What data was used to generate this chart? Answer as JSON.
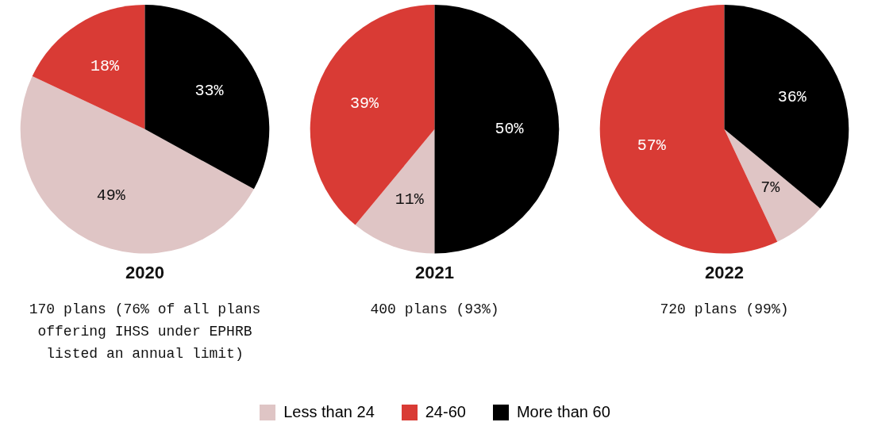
{
  "chart_data": [
    {
      "type": "pie",
      "title": "2020",
      "categories": [
        "Less than 24",
        "24-60",
        "More than 60"
      ],
      "values": [
        49,
        18,
        33
      ],
      "colors": [
        "#dfc5c5",
        "#d93b35",
        "#000000"
      ],
      "value_labels": [
        "49%",
        "18%",
        "33%"
      ],
      "legend": "bottom",
      "annotations": [
        "170 plans (76% of all plans offering IHSS under EPHRB listed an annual limit)"
      ]
    },
    {
      "type": "pie",
      "title": "2021",
      "categories": [
        null,
        null,
        null
      ],
      "values": [
        11,
        39,
        50
      ],
      "colors": [
        "#dfc5c5",
        "#d93b35",
        "#000000"
      ],
      "value_labels": [
        "11%",
        "39%",
        "50%"
      ],
      "annotations": [
        "400 plans (93%)"
      ]
    },
    {
      "type": "pie",
      "title": "2022",
      "categories": [
        null,
        null,
        null
      ],
      "values": [
        7,
        57,
        36
      ],
      "colors": [
        "#dfc5c5",
        "#d93b35",
        "#000000"
      ],
      "value_labels": [
        "7%",
        "57%",
        "36%"
      ],
      "annotations": [
        "720 plans (99%)"
      ]
    }
  ]
}
